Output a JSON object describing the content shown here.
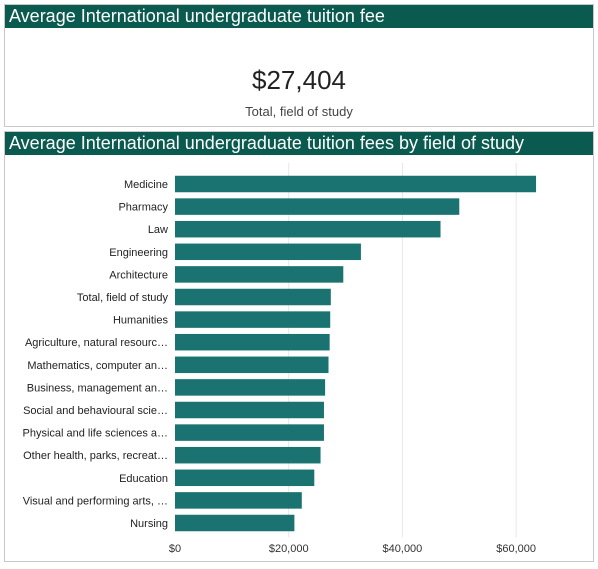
{
  "kpi": {
    "title": "Average International undergraduate tuition fee",
    "value": "$27,404",
    "label": "Total, field of study"
  },
  "chart_data": {
    "type": "bar",
    "orientation": "horizontal",
    "title": "Average International undergraduate tuition fees by field of study",
    "categories": [
      "Medicine",
      "Pharmacy",
      "Law",
      "Engineering",
      "Architecture",
      "Total, field of study",
      "Humanities",
      "Agriculture, natural resourc…",
      "Mathematics, computer an…",
      "Business, management an…",
      "Social and behavioural scie…",
      "Physical and life sciences a…",
      "Other health, parks, recreat…",
      "Education",
      "Visual and performing arts, …",
      "Nursing"
    ],
    "values": [
      63500,
      50000,
      46700,
      32700,
      29600,
      27404,
      27300,
      27200,
      27000,
      26400,
      26200,
      26200,
      25600,
      24500,
      22300,
      21000
    ],
    "xlim": [
      0,
      70000
    ],
    "xticks": [
      0,
      20000,
      40000,
      60000
    ],
    "xtick_labels": [
      "$0",
      "$20,000",
      "$40,000",
      "$60,000"
    ],
    "grid": true,
    "bar_color": "#1a7370"
  }
}
